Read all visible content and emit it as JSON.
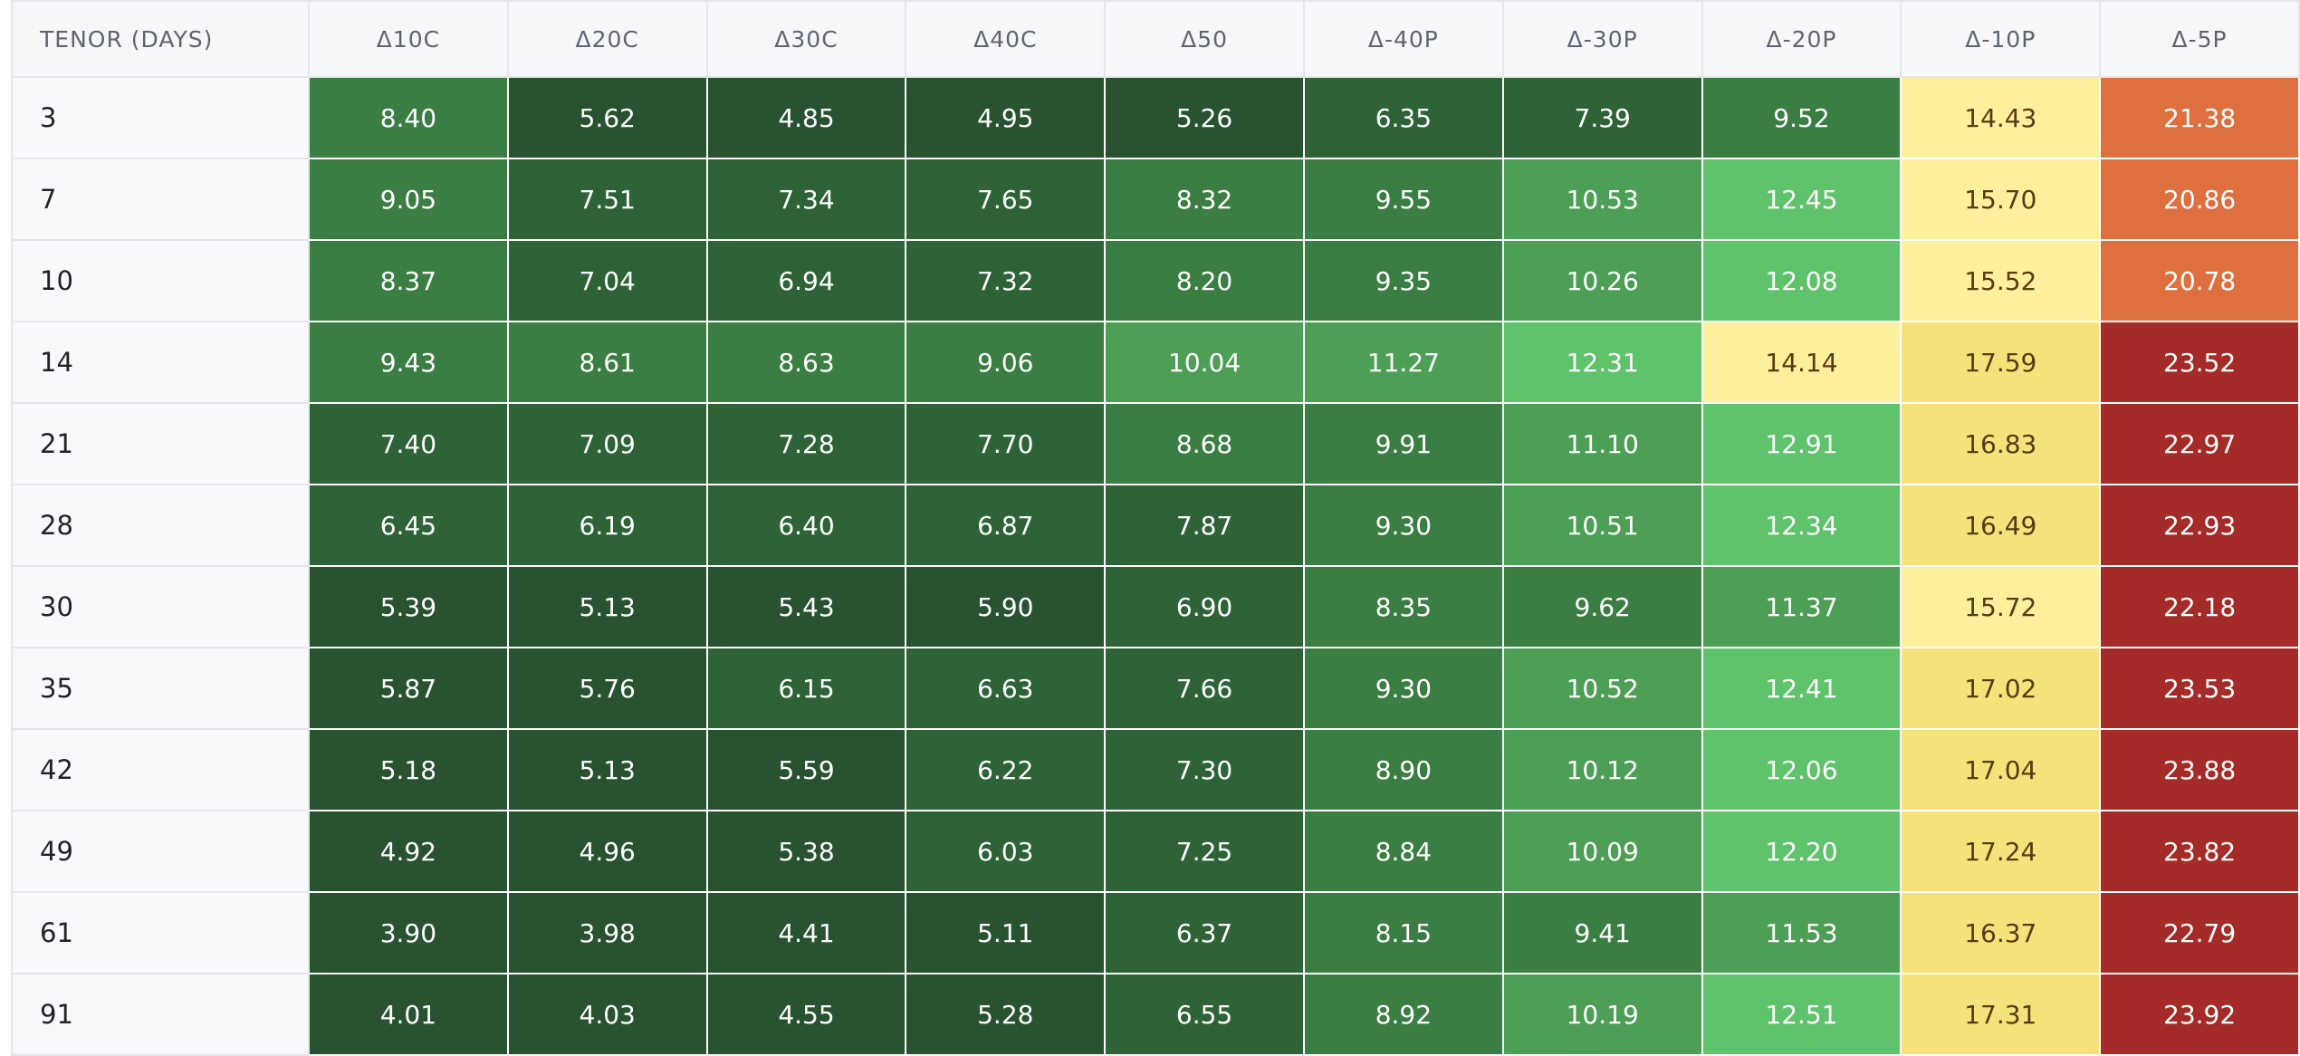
{
  "table": {
    "headers": [
      "TENOR (DAYS)",
      "Δ10C",
      "Δ20C",
      "Δ30C",
      "Δ40C",
      "Δ50",
      "Δ-40P",
      "Δ-30P",
      "Δ-20P",
      "Δ-10P",
      "Δ-5P"
    ],
    "rows": [
      [
        "3",
        "8.40",
        "5.62",
        "4.85",
        "4.95",
        "5.26",
        "6.35",
        "7.39",
        "9.52",
        "14.43",
        "21.38"
      ],
      [
        "7",
        "9.05",
        "7.51",
        "7.34",
        "7.65",
        "8.32",
        "9.55",
        "10.53",
        "12.45",
        "15.70",
        "20.86"
      ],
      [
        "10",
        "8.37",
        "7.04",
        "6.94",
        "7.32",
        "8.20",
        "9.35",
        "10.26",
        "12.08",
        "15.52",
        "20.78"
      ],
      [
        "14",
        "9.43",
        "8.61",
        "8.63",
        "9.06",
        "10.04",
        "11.27",
        "12.31",
        "14.14",
        "17.59",
        "23.52"
      ],
      [
        "21",
        "7.40",
        "7.09",
        "7.28",
        "7.70",
        "8.68",
        "9.91",
        "11.10",
        "12.91",
        "16.83",
        "22.97"
      ],
      [
        "28",
        "6.45",
        "6.19",
        "6.40",
        "6.87",
        "7.87",
        "9.30",
        "10.51",
        "12.34",
        "16.49",
        "22.93"
      ],
      [
        "30",
        "5.39",
        "5.13",
        "5.43",
        "5.90",
        "6.90",
        "8.35",
        "9.62",
        "11.37",
        "15.72",
        "22.18"
      ],
      [
        "35",
        "5.87",
        "5.76",
        "6.15",
        "6.63",
        "7.66",
        "9.30",
        "10.52",
        "12.41",
        "17.02",
        "23.53"
      ],
      [
        "42",
        "5.18",
        "5.13",
        "5.59",
        "6.22",
        "7.30",
        "8.90",
        "10.12",
        "12.06",
        "17.04",
        "23.88"
      ],
      [
        "49",
        "4.92",
        "4.96",
        "5.38",
        "6.03",
        "7.25",
        "8.84",
        "10.09",
        "12.20",
        "17.24",
        "23.82"
      ],
      [
        "61",
        "3.90",
        "3.98",
        "4.41",
        "5.11",
        "6.37",
        "8.15",
        "9.41",
        "11.53",
        "16.37",
        "22.79"
      ],
      [
        "91",
        "4.01",
        "4.03",
        "4.55",
        "5.28",
        "6.55",
        "8.92",
        "10.19",
        "12.51",
        "17.31",
        "23.92"
      ]
    ]
  }
}
